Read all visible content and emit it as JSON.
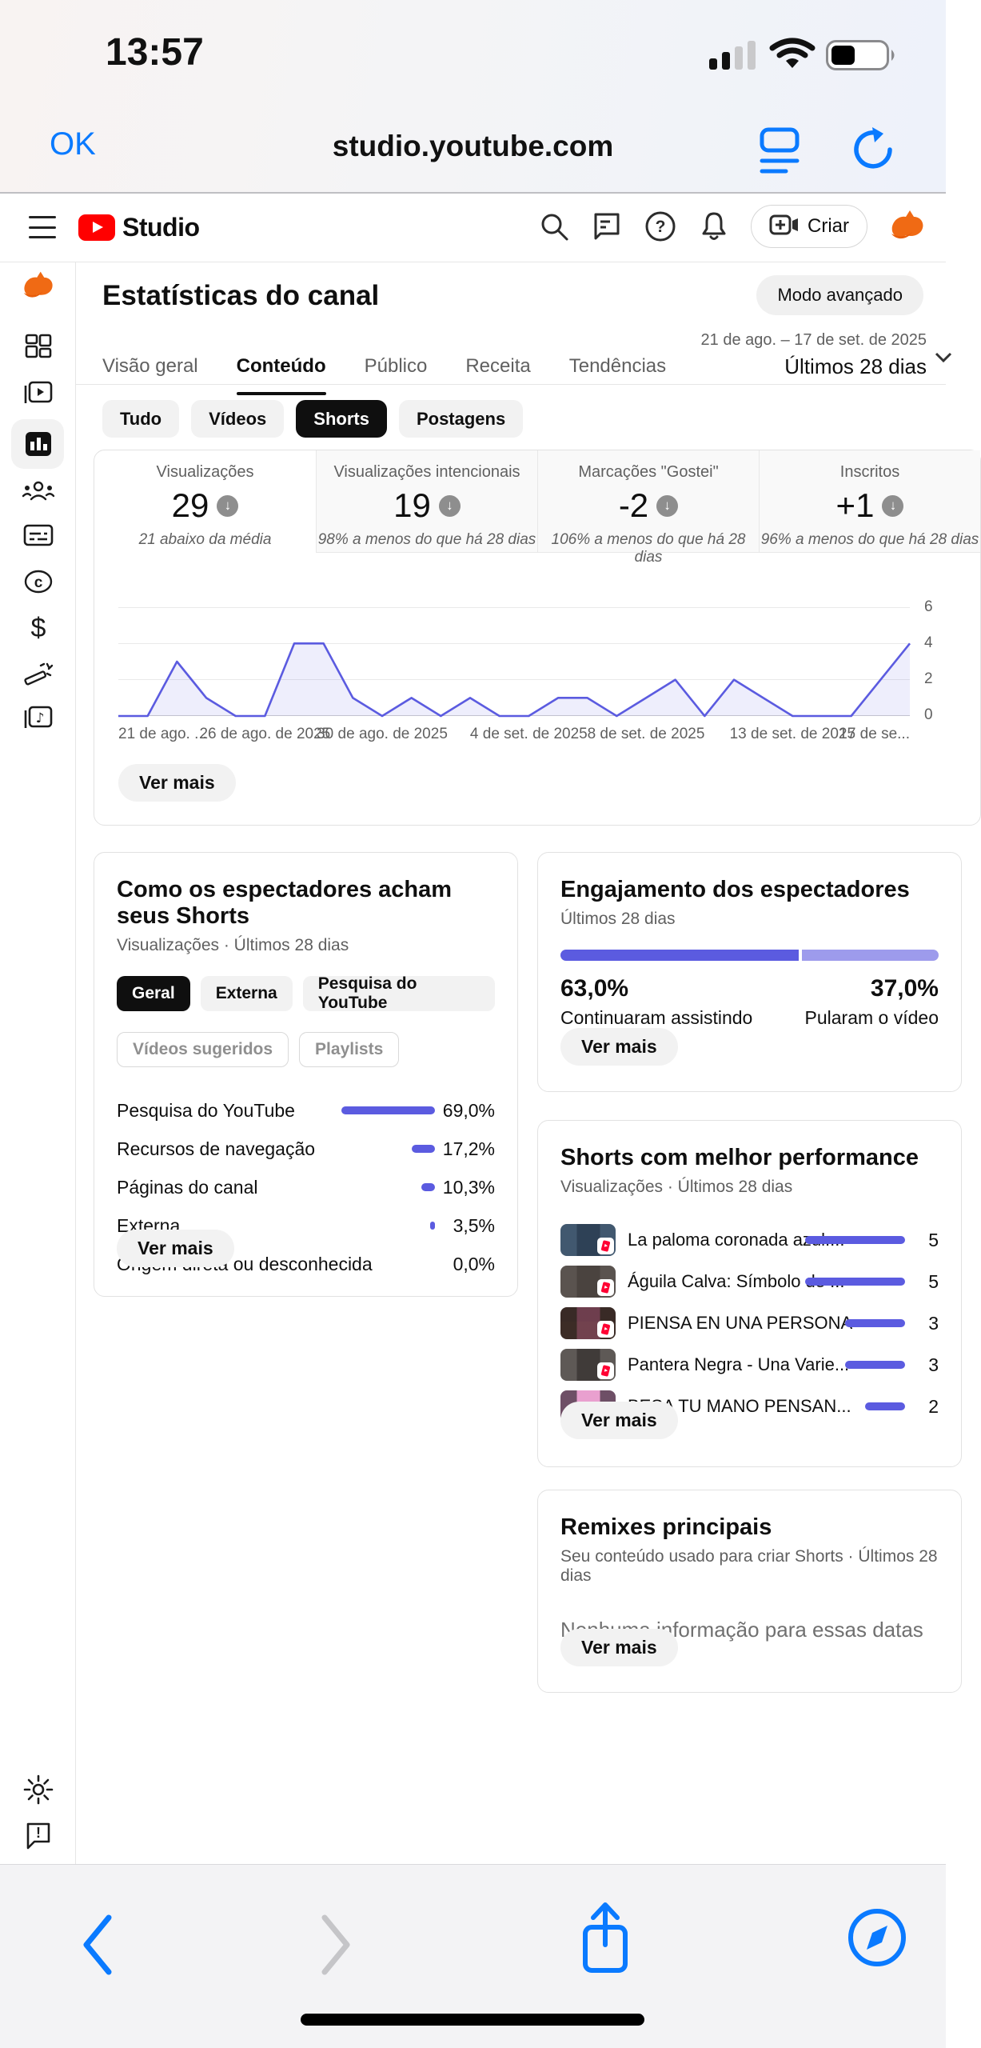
{
  "colors": {
    "accent": "#5b5be0",
    "accent_light": "#9d9bec",
    "ios_blue": "#0a7aff",
    "brand_red": "#ff0000",
    "chip_active": "#0f0f0f"
  },
  "status_bar": {
    "time": "13:57",
    "icons": [
      "cellular-signal-icon",
      "wifi-icon",
      "battery-icon"
    ]
  },
  "browser": {
    "done_label": "OK",
    "url": "studio.youtube.com",
    "icons": [
      "reader-icon",
      "reload-icon"
    ]
  },
  "header": {
    "brand": "Studio",
    "create_label": "Criar",
    "icons": [
      "menu-icon",
      "youtube-logo",
      "search-icon",
      "feedback-icon",
      "help-icon",
      "bell-icon",
      "create-icon",
      "channel-avatar"
    ]
  },
  "sidebar": {
    "icons": [
      "channel-avatar",
      "dashboard-icon",
      "content-icon",
      "analytics-icon",
      "community-icon",
      "subtitles-icon",
      "copyright-icon",
      "earn-icon",
      "customization-icon",
      "audio-library-icon",
      "settings-icon",
      "send-feedback-icon"
    ],
    "copyright_glyph": "©",
    "earn_glyph": "$",
    "note_glyph": "♪",
    "feedback_glyph": "!"
  },
  "page": {
    "title": "Estatísticas do canal",
    "advanced_mode_label": "Modo avançado",
    "date_range": "21 de ago. – 17 de set. de 2025",
    "date_preset": "Últimos 28 dias",
    "tabs": [
      {
        "label": "Visão geral"
      },
      {
        "label": "Conteúdo",
        "active": true
      },
      {
        "label": "Público"
      },
      {
        "label": "Receita"
      },
      {
        "label": "Tendências"
      }
    ],
    "filter_chips": [
      {
        "label": "Tudo"
      },
      {
        "label": "Vídeos"
      },
      {
        "label": "Shorts",
        "active": true
      },
      {
        "label": "Postagens"
      }
    ]
  },
  "metrics": {
    "cards": [
      {
        "label": "Visualizações",
        "value": "29",
        "trend": "down",
        "note": "21 abaixo da média",
        "selected": true
      },
      {
        "label": "Visualizações intencionais",
        "value": "19",
        "trend": "down",
        "note": "98% a menos do que há 28 dias"
      },
      {
        "label": "Marcações \"Gostei\"",
        "value": "-2",
        "trend": "down",
        "note": "106% a menos do que há 28 dias"
      },
      {
        "label": "Inscritos",
        "value": "+1",
        "trend": "down",
        "note": "96% a menos do que há 28 dias"
      }
    ],
    "trend_glyph": "↓",
    "see_more": "Ver mais"
  },
  "chart_data": {
    "type": "area",
    "metric": "Visualizações",
    "x": [
      "21 ago",
      "22 ago",
      "23 ago",
      "24 ago",
      "25 ago",
      "26 ago",
      "27 ago",
      "28 ago",
      "29 ago",
      "30 ago",
      "31 ago",
      "1 set",
      "2 set",
      "3 set",
      "4 set",
      "5 set",
      "6 set",
      "7 set",
      "8 set",
      "9 set",
      "10 set",
      "11 set",
      "12 set",
      "13 set",
      "14 set",
      "15 set",
      "16 set",
      "17 set"
    ],
    "values": [
      0,
      0,
      3,
      1,
      0,
      0,
      4,
      4,
      1,
      0,
      1,
      0,
      1,
      0,
      0,
      1,
      1,
      0,
      1,
      2,
      0,
      2,
      1,
      0,
      0,
      0,
      2,
      4
    ],
    "ylim": [
      0,
      6
    ],
    "y_ticks": [
      "6",
      "4",
      "2",
      "0"
    ],
    "y_axis_position": "right",
    "grid": true,
    "line_color": "#5b5be0",
    "fill_opacity": 0.1,
    "tick_labels": [
      {
        "text": "21 de ago. ...",
        "day": 0
      },
      {
        "text": "26 de ago. de 2025",
        "day": 5
      },
      {
        "text": "30 de ago. de 2025",
        "day": 9
      },
      {
        "text": "4 de set. de 2025",
        "day": 14
      },
      {
        "text": "8 de set. de 2025",
        "day": 18
      },
      {
        "text": "13 de set. de 2025",
        "day": 23
      },
      {
        "text": "17 de se...",
        "day": 27
      }
    ]
  },
  "cards": {
    "discovery": {
      "title": "Como os espectadores acham seus Shorts",
      "subtitle": "Visualizações · Últimos 28 dias",
      "chips_row1": [
        {
          "label": "Geral",
          "active": true
        },
        {
          "label": "Externa"
        },
        {
          "label": "Pesquisa do YouTube"
        }
      ],
      "chips_row2": [
        {
          "label": "Vídeos sugeridos"
        },
        {
          "label": "Playlists"
        }
      ],
      "rows": [
        {
          "label": "Pesquisa do YouTube",
          "value": "69,0%",
          "pct": 69.0
        },
        {
          "label": "Recursos de navegação",
          "value": "17,2%",
          "pct": 17.2
        },
        {
          "label": "Páginas do canal",
          "value": "10,3%",
          "pct": 10.3
        },
        {
          "label": "Externa",
          "value": "3,5%",
          "pct": 3.5
        },
        {
          "label": "Origem direta ou desconhecida",
          "value": "0,0%",
          "pct": 0
        }
      ],
      "see_more": "Ver mais"
    },
    "engagement": {
      "title": "Engajamento dos espectadores",
      "subtitle": "Últimos 28 dias",
      "left_value": "63,0%",
      "left_pct": 63.0,
      "left_label": "Continuaram assistindo",
      "right_value": "37,0%",
      "right_pct": 37.0,
      "right_label": "Pularam o vídeo",
      "see_more": "Ver mais"
    },
    "top_shorts": {
      "title": "Shorts com melhor performance",
      "subtitle": "Visualizações · Últimos 28 dias",
      "items": [
        {
          "title": "La paloma coronada azul:...",
          "views": 5
        },
        {
          "title": "Águila Calva: Símbolo de ...",
          "views": 5
        },
        {
          "title": "PIENSA EN UNA PERSONA",
          "views": 3
        },
        {
          "title": "Pantera Negra - Una Varie...",
          "views": 3
        },
        {
          "title": "BESA TU MANO PENSAN...",
          "views": 2
        }
      ],
      "see_more": "Ver mais"
    },
    "remixes": {
      "title": "Remixes principais",
      "subtitle": "Seu conteúdo usado para criar Shorts · Últimos 28 dias",
      "empty_text": "Nenhuma informação para essas datas",
      "see_more": "Ver mais"
    }
  },
  "toolbar": {
    "icons": [
      "back-icon",
      "forward-icon",
      "share-icon",
      "compass-icon"
    ]
  }
}
